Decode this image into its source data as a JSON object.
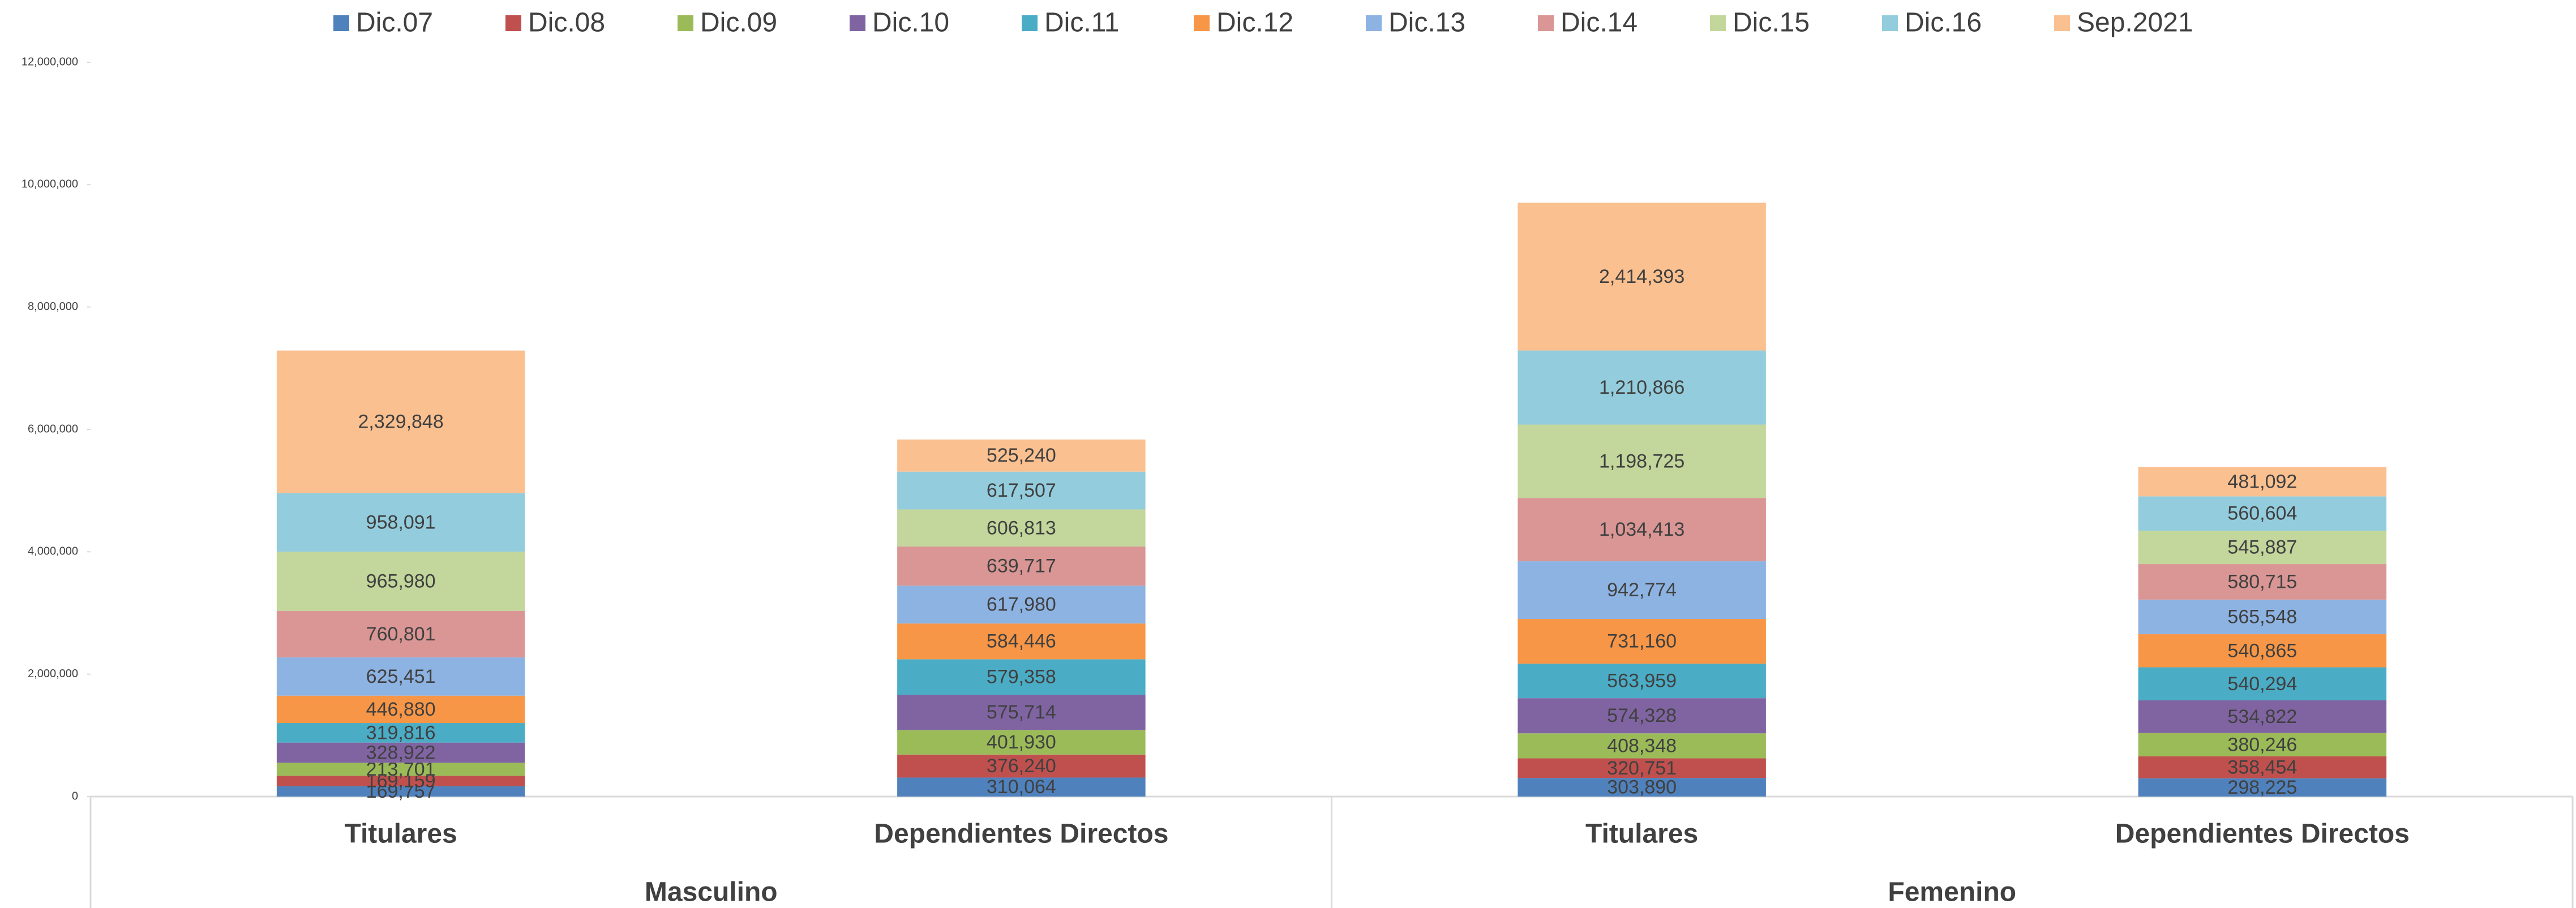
{
  "chart_data": {
    "type": "stacked_bar",
    "categories": [
      "Titulares",
      "Dependientes Directos",
      "Titulares",
      "Dependientes Directos"
    ],
    "groups": [
      "Masculino",
      "Femenino"
    ],
    "ylim": [
      0,
      12000000
    ],
    "yticks": [
      0,
      {
        "value": 2000000,
        "label": "2,000,000"
      },
      {
        "value": 4000000,
        "label": "4,000,000"
      },
      {
        "value": 6000000,
        "label": "6,000,000"
      },
      {
        "value": 8000000,
        "label": "8,000,000"
      },
      {
        "value": 10000000,
        "label": "10,000,000"
      },
      {
        "value": 12000000,
        "label": "12,000,000"
      }
    ],
    "legend": "top",
    "series": [
      {
        "name": "Dic.07",
        "color": "#4f81bd",
        "values": [
          169757,
          310064,
          303890,
          298225
        ],
        "value_labels": [
          "169,757",
          "310,064",
          "303,890",
          "298,225"
        ]
      },
      {
        "name": "Dic.08",
        "color": "#c0504d",
        "values": [
          169159,
          376240,
          320751,
          358454
        ],
        "value_labels": [
          "169,159",
          "376,240",
          "320,751",
          "358,454"
        ]
      },
      {
        "name": "Dic.09",
        "color": "#9bbb59",
        "values": [
          213701,
          401930,
          408348,
          380246
        ],
        "value_labels": [
          "213,701",
          "401,930",
          "408,348",
          "380,246"
        ]
      },
      {
        "name": "Dic.10",
        "color": "#8064a2",
        "values": [
          328922,
          575714,
          574328,
          534822
        ],
        "value_labels": [
          "328,922",
          "575,714",
          "574,328",
          "534,822"
        ]
      },
      {
        "name": "Dic.11",
        "color": "#4bacc6",
        "values": [
          319816,
          579358,
          563959,
          540294
        ],
        "value_labels": [
          "319,816",
          "579,358",
          "563,959",
          "540,294"
        ]
      },
      {
        "name": "Dic.12",
        "color": "#f79646",
        "values": [
          446880,
          584446,
          731160,
          540865
        ],
        "value_labels": [
          "446,880",
          "584,446",
          "731,160",
          "540,865"
        ]
      },
      {
        "name": "Dic.13",
        "color": "#8db3e2",
        "values": [
          625451,
          617980,
          942774,
          565548
        ],
        "value_labels": [
          "625,451",
          "617,980",
          "942,774",
          "565,548"
        ]
      },
      {
        "name": "Dic.14",
        "color": "#d99694",
        "values": [
          760801,
          639717,
          1034413,
          580715
        ],
        "value_labels": [
          "760,801",
          "639,717",
          "1,034,413",
          "580,715"
        ]
      },
      {
        "name": "Dic.15",
        "color": "#c3d69b",
        "values": [
          965980,
          606813,
          1198725,
          545887
        ],
        "value_labels": [
          "965,980",
          "606,813",
          "1,198,725",
          "545,887"
        ]
      },
      {
        "name": "Dic.16",
        "color": "#93cddd",
        "values": [
          958091,
          617507,
          1210866,
          560604
        ],
        "value_labels": [
          "958,091",
          "617,507",
          "1,210,866",
          "560,604"
        ]
      },
      {
        "name": "Sep.2021",
        "color": "#fac090",
        "values": [
          2329848,
          525240,
          2414393,
          481092
        ],
        "value_labels": [
          "2,329,848",
          "525,240",
          "2,414,393",
          "481,092"
        ]
      }
    ]
  }
}
